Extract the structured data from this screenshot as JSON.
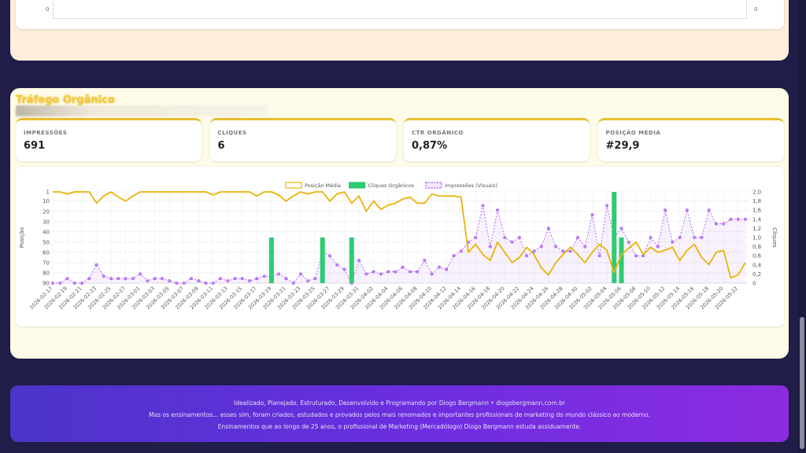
{
  "top_panel": {
    "axis_labels": [
      "0",
      "0"
    ]
  },
  "section_title": "Tráfego Orgânico",
  "kpis": [
    {
      "label": "IMPRESSÕES",
      "value": "691"
    },
    {
      "label": "CLIQUES",
      "value": "6"
    },
    {
      "label": "CTR ORGÂNICO",
      "value": "0,87%"
    },
    {
      "label": "POSIÇÃO MÉDIA",
      "value": "#29,9"
    }
  ],
  "chart_data": {
    "type": "combo",
    "ylabel": "Posição",
    "y2label": "Cliques",
    "y_reversed": true,
    "ylim": [
      1,
      90
    ],
    "yticks": [
      1,
      10,
      20,
      30,
      40,
      50,
      60,
      70,
      80,
      90
    ],
    "y2lim": [
      0,
      2
    ],
    "y2ticks": [
      0,
      {
        "value": 0.2,
        "label": "0,2"
      },
      {
        "value": 0.4,
        "label": "0,4"
      },
      {
        "value": 0.6,
        "label": "0,6"
      },
      {
        "value": 0.8,
        "label": "0,8"
      },
      {
        "value": 1,
        "label": "1,0"
      },
      {
        "value": 1.2,
        "label": "1,2"
      },
      {
        "value": 1.4,
        "label": "1,4"
      },
      {
        "value": 1.6,
        "label": "1,6"
      },
      {
        "value": 1.8,
        "label": "1,8"
      },
      {
        "value": 2,
        "label": "2,0"
      }
    ],
    "grid": true,
    "legend": "top",
    "categories": [
      "2026-02-17",
      null,
      "2026-02-19",
      null,
      "2026-02-21",
      null,
      "2026-02-23",
      null,
      "2026-02-25",
      null,
      "2026-02-27",
      null,
      "2026-03-01",
      null,
      "2026-03-03",
      null,
      "2026-03-05",
      null,
      "2026-03-07",
      null,
      "2026-03-09",
      null,
      "2026-03-11",
      null,
      "2026-03-13",
      null,
      "2026-03-15",
      null,
      "2026-03-17",
      null,
      "2026-03-19",
      null,
      "2026-03-21",
      null,
      "2026-03-23",
      null,
      "2026-03-25",
      null,
      "2026-03-27",
      null,
      "2026-03-29",
      null,
      "2026-03-31",
      null,
      "2026-04-02",
      null,
      "2026-04-04",
      null,
      "2026-04-06",
      null,
      "2026-04-08",
      null,
      "2026-04-10",
      null,
      "2026-04-12",
      null,
      "2026-04-14",
      null,
      "2026-04-16",
      null,
      "2026-04-18",
      null,
      "2026-04-20",
      null,
      "2026-04-22",
      null,
      "2026-04-24",
      null,
      "2026-04-26",
      null,
      "2026-04-28",
      null,
      "2026-04-30",
      null,
      "2026-05-02",
      null,
      "2026-05-04",
      null,
      "2026-05-06",
      null,
      "2026-05-08",
      null,
      "2026-05-10",
      null,
      "2026-05-12",
      null,
      "2026-05-14",
      null,
      "2026-05-16",
      null,
      "2026-05-18",
      null,
      "2026-05-20",
      null,
      "2026-05-22",
      null
    ],
    "series": [
      {
        "name": "Posição Média",
        "kind": "line",
        "axis": "y",
        "color": "#eab308",
        "values": [
          1,
          1,
          3,
          1,
          1,
          1,
          12,
          5,
          1,
          6,
          10,
          5,
          1,
          1,
          1,
          1,
          1,
          1,
          1,
          1,
          1,
          1,
          4,
          1,
          1,
          1,
          1,
          1,
          5,
          1,
          1,
          4,
          10,
          5,
          1,
          3,
          1,
          1,
          10,
          3,
          1,
          12,
          5,
          20,
          10,
          18,
          14,
          12,
          8,
          6,
          12,
          12,
          3,
          5,
          5,
          5,
          6,
          60,
          52,
          62,
          68,
          50,
          60,
          70,
          65,
          55,
          62,
          75,
          82,
          70,
          62,
          55,
          62,
          70,
          60,
          52,
          58,
          80,
          62,
          56,
          50,
          62,
          55,
          60,
          58,
          55,
          68,
          58,
          52,
          65,
          72,
          60,
          58,
          85,
          82,
          70
        ]
      },
      {
        "name": "Cliques Orgânicos",
        "kind": "bar",
        "axis": "y2",
        "color": "#2ecc71",
        "values": [
          0,
          0,
          0,
          0,
          0,
          0,
          0,
          0,
          0,
          0,
          0,
          0,
          0,
          0,
          0,
          0,
          0,
          0,
          0,
          0,
          0,
          0,
          0,
          0,
          0,
          0,
          0,
          0,
          0,
          0,
          1,
          0,
          0,
          0,
          0,
          0,
          0,
          1,
          0,
          0,
          0,
          1,
          0,
          0,
          0,
          0,
          0,
          0,
          0,
          0,
          0,
          0,
          0,
          0,
          0,
          0,
          0,
          0,
          0,
          0,
          0,
          0,
          0,
          0,
          0,
          0,
          0,
          0,
          0,
          0,
          0,
          0,
          0,
          0,
          0,
          0,
          0,
          2,
          1,
          0,
          0,
          0,
          0,
          0,
          0,
          0,
          0,
          0,
          0,
          0,
          0,
          0,
          0,
          0,
          0,
          0
        ]
      },
      {
        "name": "Impressões (Visuais)",
        "kind": "area",
        "axis": "y2",
        "color": "#a855f7",
        "values": [
          0,
          0,
          0.1,
          0,
          0,
          0.1,
          0.4,
          0.15,
          0.1,
          0.1,
          0.1,
          0.1,
          0.2,
          0.05,
          0.1,
          0.1,
          0.05,
          0,
          0,
          0.1,
          0.05,
          0,
          0,
          0.1,
          0.05,
          0.1,
          0.1,
          0.05,
          0.1,
          0.15,
          0.15,
          0.2,
          0.1,
          0,
          0.2,
          0.05,
          0.1,
          0.7,
          0.6,
          0.4,
          0.3,
          0,
          0.5,
          0.2,
          0.25,
          0.2,
          0.25,
          0.25,
          0.35,
          0.25,
          0.25,
          0.5,
          0.2,
          0.35,
          0.3,
          0.6,
          0.7,
          0.9,
          1.0,
          1.7,
          0.8,
          1.6,
          1.0,
          0.9,
          1.0,
          0.6,
          0.7,
          0.8,
          1.2,
          0.8,
          0.7,
          0.7,
          1.0,
          0.8,
          1.5,
          0.6,
          1.7,
          1.0,
          1.2,
          0.9,
          0.6,
          0.6,
          1.0,
          0.8,
          1.6,
          0.9,
          1.0,
          1.6,
          1.0,
          1.0,
          1.6,
          1.3,
          1.3,
          1.4,
          1.4,
          1.4
        ]
      }
    ]
  },
  "footer": {
    "lines": [
      "Idealizado, Planejado, Estruturado, Desenvolvido e Programando por Diogo Bergmann • diogobergmann.com.br",
      "Mas os ensinamentos... esses sim, foram criados, estudados e provados pelos mais renomados e importantes profissionais de marketing do mundo clássico ao moderno.",
      "Ensinamentos que ao longo de 25 anos, o profissional de Marketing (Mercadólogo) Diogo Bergmann estuda assiduamente."
    ]
  }
}
